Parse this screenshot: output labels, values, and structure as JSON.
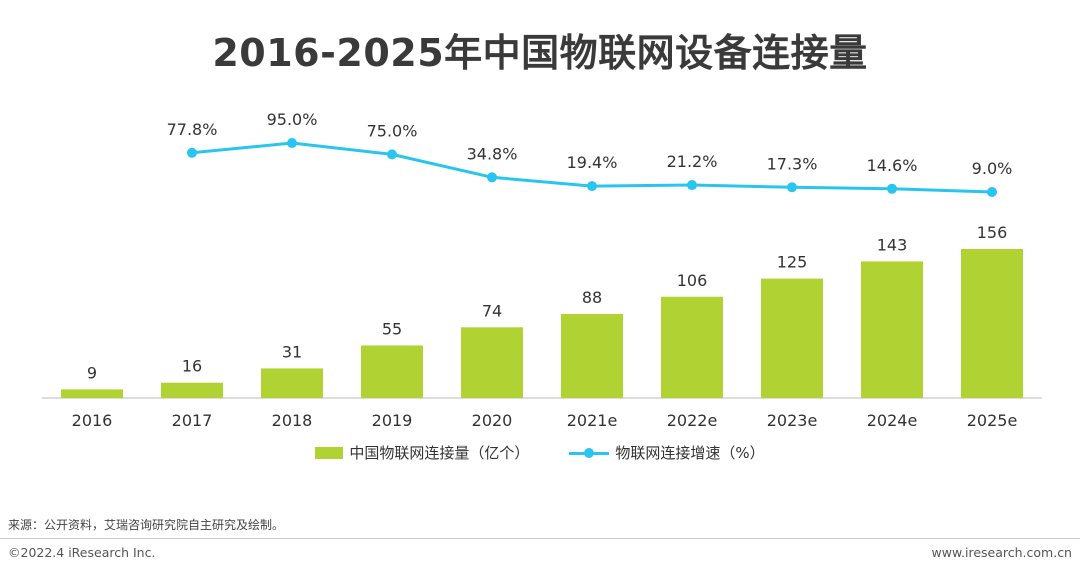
{
  "title": "2016-2025年中国物联网设备连接量",
  "colors": {
    "bar": "#b0d233",
    "line": "#29c5ee",
    "axis": "#bbbbbb"
  },
  "chart_data": {
    "type": "bar",
    "categories": [
      "2016",
      "2017",
      "2018",
      "2019",
      "2020",
      "2021e",
      "2022e",
      "2023e",
      "2024e",
      "2025e"
    ],
    "series": [
      {
        "name": "中国物联网连接量（亿个）",
        "type": "bar",
        "values": [
          9,
          16,
          31,
          55,
          74,
          88,
          106,
          125,
          143,
          156
        ],
        "labels": [
          "9",
          "16",
          "31",
          "55",
          "74",
          "88",
          "106",
          "125",
          "143",
          "156"
        ]
      },
      {
        "name": "物联网连接增速（%）",
        "type": "line",
        "values": [
          null,
          77.8,
          95.0,
          75.0,
          34.8,
          19.4,
          21.2,
          17.3,
          14.6,
          9.0
        ],
        "labels": [
          "",
          "77.8%",
          "95.0%",
          "75.0%",
          "34.8%",
          "19.4%",
          "21.2%",
          "17.3%",
          "14.6%",
          "9.0%"
        ]
      }
    ],
    "legend": "bottom",
    "grid": false
  },
  "legend": {
    "bar_label": "中国物联网连接量（亿个）",
    "line_label": "物联网连接增速（%）"
  },
  "source": "来源：公开资料，艾瑞咨询研究院自主研究及绘制。",
  "copyright": "©2022.4 iResearch Inc.",
  "website": "www.iresearch.com.cn"
}
